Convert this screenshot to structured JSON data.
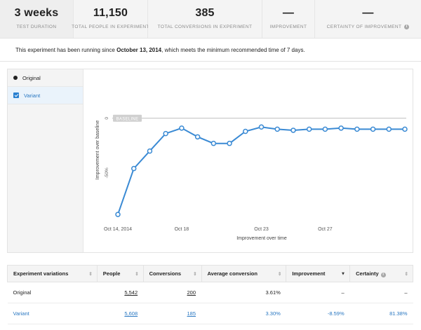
{
  "stats": [
    {
      "value": "3 weeks",
      "label": "TEST DURATION"
    },
    {
      "value": "11,150",
      "label": "TOTAL PEOPLE IN EXPERIMENT"
    },
    {
      "value": "385",
      "label": "TOTAL CONVERSIONS IN EXPERIMENT"
    },
    {
      "value": "—",
      "label": "IMPROVEMENT"
    },
    {
      "value": "—",
      "label": "CERTAINTY OF IMPROVEMENT"
    }
  ],
  "notice": {
    "prefix": "This experiment has been running since ",
    "date": "October 13, 2014",
    "suffix": ", which meets the minimum recommended time of 7 days."
  },
  "legend": {
    "original": "Original",
    "variant": "Variant"
  },
  "colors": {
    "accent": "#2a80d0",
    "line": "#3a8ad4",
    "baseline": "#bdbdbd"
  },
  "chart_data": {
    "type": "line",
    "xlabel": "Improvement over time",
    "ylabel": "Improvement over baseline",
    "baseline_label": "BASELINE",
    "x_ticks": [
      "Oct 14, 2014",
      "Oct 18",
      "Oct 23",
      "Oct 27"
    ],
    "y_ticks": [
      "0",
      "-50%"
    ],
    "x": [
      "2014-10-14",
      "2014-10-15",
      "2014-10-16",
      "2014-10-17",
      "2014-10-18",
      "2014-10-19",
      "2014-10-20",
      "2014-10-21",
      "2014-10-22",
      "2014-10-23",
      "2014-10-24",
      "2014-10-25",
      "2014-10-26",
      "2014-10-27",
      "2014-10-28",
      "2014-10-29",
      "2014-10-30",
      "2014-10-31",
      "2014-11-01"
    ],
    "series": [
      {
        "name": "Variant",
        "values": [
          -88,
          -46,
          -30,
          -14,
          -9,
          -17,
          -23,
          -23,
          -12,
          -8,
          -10,
          -11,
          -10,
          -10,
          -9,
          -10,
          -10,
          -10,
          -10
        ]
      }
    ],
    "ylim": [
      -95,
      5
    ]
  },
  "table": {
    "columns": [
      "Experiment variations",
      "People",
      "Conversions",
      "Average conversion",
      "Improvement",
      "Certainty"
    ],
    "rows": [
      {
        "name": "Original",
        "people": "5,542",
        "conversions": "200",
        "avg": "3.61%",
        "improvement": "–",
        "certainty": "–"
      },
      {
        "name": "Variant",
        "people": "5,608",
        "conversions": "185",
        "avg": "3.30%",
        "improvement": "-8.59%",
        "certainty": "81.38%"
      }
    ]
  }
}
